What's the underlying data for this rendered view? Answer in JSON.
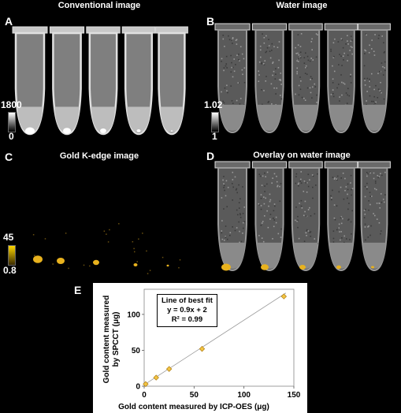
{
  "panels": {
    "A": {
      "letter": "A",
      "title": "Conventional image",
      "cbar_max": "1800",
      "cbar_min": "0"
    },
    "B": {
      "letter": "B",
      "title": "Water image",
      "cbar_max": "1.02",
      "cbar_min": "1"
    },
    "C": {
      "letter": "C",
      "title": "Gold K-edge image",
      "cbar_max": "45",
      "cbar_min": "0.8"
    },
    "D": {
      "letter": "D",
      "title": "Overlay on water image"
    },
    "E": {
      "letter": "E"
    }
  },
  "colors": {
    "background": "#000000",
    "gold": "#e8b21e",
    "marker_fill": "#f2c443",
    "marker_stroke": "#b07d10"
  },
  "chart_data": {
    "type": "scatter",
    "xlabel": "Gold content measured by ICP-OES (μg)",
    "ylabel_line1": "Gold content measured",
    "ylabel_line2": "by SPCCT  (μg)",
    "xlim": [
      0,
      150
    ],
    "ylim": [
      0,
      135
    ],
    "xticks": [
      0,
      50,
      100,
      150
    ],
    "yticks": [
      0,
      50,
      100
    ],
    "points": [
      {
        "x": 1.5,
        "y": 3
      },
      {
        "x": 12,
        "y": 12
      },
      {
        "x": 25,
        "y": 24
      },
      {
        "x": 58,
        "y": 52
      },
      {
        "x": 140,
        "y": 125
      }
    ],
    "fit": {
      "slope": 0.9,
      "intercept": 2
    },
    "legend": {
      "title": "Line of best fit",
      "equation": "y = 0.9x + 2",
      "r2": "R² = 0.99"
    }
  }
}
